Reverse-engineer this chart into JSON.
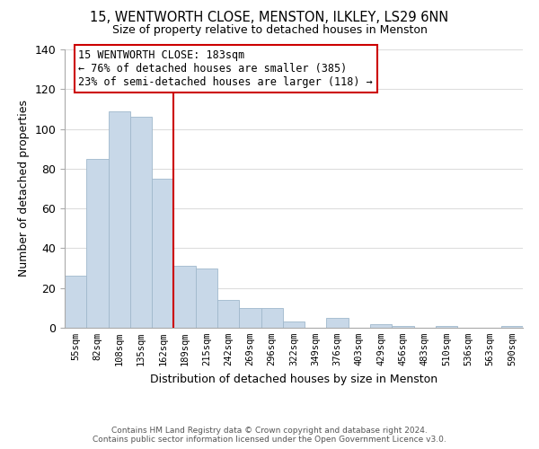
{
  "title": "15, WENTWORTH CLOSE, MENSTON, ILKLEY, LS29 6NN",
  "subtitle": "Size of property relative to detached houses in Menston",
  "xlabel": "Distribution of detached houses by size in Menston",
  "ylabel": "Number of detached properties",
  "bar_color": "#c8d8e8",
  "bar_edge_color": "#a0b8cc",
  "vline_color": "#cc0000",
  "categories": [
    "55sqm",
    "82sqm",
    "108sqm",
    "135sqm",
    "162sqm",
    "189sqm",
    "215sqm",
    "242sqm",
    "269sqm",
    "296sqm",
    "322sqm",
    "349sqm",
    "376sqm",
    "403sqm",
    "429sqm",
    "456sqm",
    "483sqm",
    "510sqm",
    "536sqm",
    "563sqm",
    "590sqm"
  ],
  "values": [
    26,
    85,
    109,
    106,
    75,
    31,
    30,
    14,
    10,
    10,
    3,
    0,
    5,
    0,
    2,
    1,
    0,
    1,
    0,
    0,
    1
  ],
  "ylim": [
    0,
    140
  ],
  "yticks": [
    0,
    20,
    40,
    60,
    80,
    100,
    120,
    140
  ],
  "annotation_line1": "15 WENTWORTH CLOSE: 183sqm",
  "annotation_line2": "← 76% of detached houses are smaller (385)",
  "annotation_line3": "23% of semi-detached houses are larger (118) →",
  "footer_line1": "Contains HM Land Registry data © Crown copyright and database right 2024.",
  "footer_line2": "Contains public sector information licensed under the Open Government Licence v3.0.",
  "background_color": "#ffffff",
  "grid_color": "#dddddd"
}
